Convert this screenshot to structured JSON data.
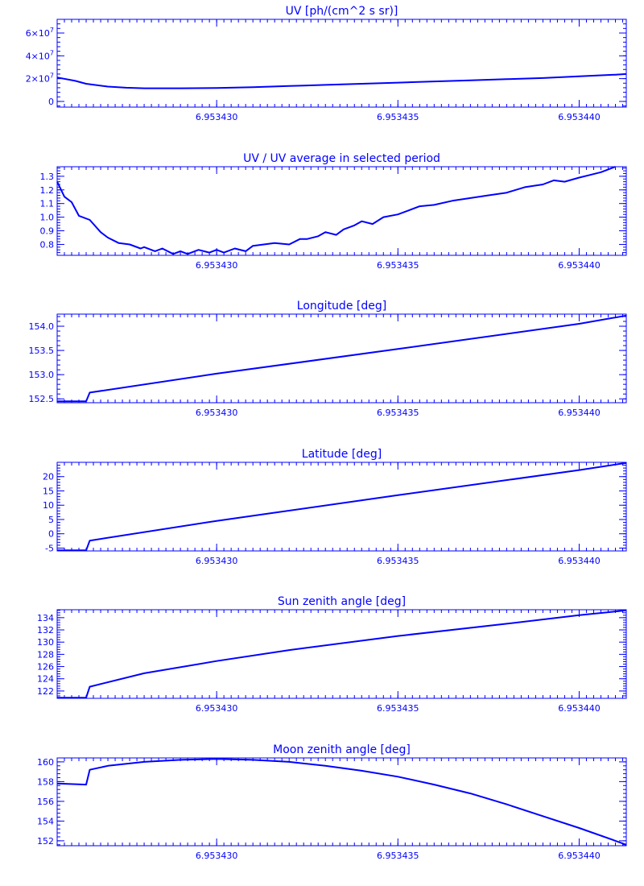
{
  "colors": {
    "ink": "#0000ff",
    "background": "#ffffff"
  },
  "chart_data": [
    {
      "type": "line",
      "title": "UV [ph/(cm^2 s sr)]",
      "xlim": [
        6.9534256,
        6.9534413
      ],
      "ylim": [
        -5000000,
        72000000
      ],
      "x_ticks": [
        6.95343,
        6.953435,
        6.95344
      ],
      "x_tick_labels": [
        "6.953430",
        "6.953435",
        "6.953440"
      ],
      "y_ticks": [
        0,
        20000000,
        40000000,
        60000000
      ],
      "y_tick_labels": [
        {
          "m": "0",
          "e": ""
        },
        {
          "m": "2×10",
          "e": "7"
        },
        {
          "m": "4×10",
          "e": "7"
        },
        {
          "m": "6×10",
          "e": "7"
        }
      ],
      "series": [
        {
          "x": [
            6.9534256,
            6.9534261,
            6.9534264,
            6.953427,
            6.9534275,
            6.953428,
            6.953429,
            6.95343,
            6.953431,
            6.953432,
            6.953433,
            6.953434,
            6.953435,
            6.953436,
            6.953437,
            6.953438,
            6.953439,
            6.95344,
            6.953441,
            6.9534413
          ],
          "y": [
            21000000,
            18000000,
            15500000,
            13000000,
            12000000,
            11500000,
            11500000,
            11800000,
            12500000,
            13500000,
            14500000,
            15500000,
            16500000,
            17500000,
            18500000,
            19500000,
            20500000,
            22000000,
            23500000,
            24000000
          ]
        }
      ]
    },
    {
      "type": "line",
      "title": "UV / UV average in selected period",
      "xlim": [
        6.9534256,
        6.9534413
      ],
      "ylim": [
        0.72,
        1.37
      ],
      "x_ticks": [
        6.95343,
        6.953435,
        6.95344
      ],
      "x_tick_labels": [
        "6.953430",
        "6.953435",
        "6.953440"
      ],
      "y_ticks": [
        0.8,
        0.9,
        1.0,
        1.1,
        1.2,
        1.3
      ],
      "y_tick_labels": [
        {
          "m": "0.8",
          "e": ""
        },
        {
          "m": "0.9",
          "e": ""
        },
        {
          "m": "1.0",
          "e": ""
        },
        {
          "m": "1.1",
          "e": ""
        },
        {
          "m": "1.2",
          "e": ""
        },
        {
          "m": "1.3",
          "e": ""
        }
      ],
      "series": [
        {
          "x": [
            6.9534256,
            6.9534258,
            6.953426,
            6.9534262,
            6.9534265,
            6.9534268,
            6.953427,
            6.9534273,
            6.9534276,
            6.9534279,
            6.953428,
            6.9534283,
            6.9534285,
            6.9534288,
            6.953429,
            6.9534292,
            6.9534295,
            6.9534298,
            6.95343,
            6.9534302,
            6.9534305,
            6.9534308,
            6.953431,
            6.9534313,
            6.9534316,
            6.953432,
            6.9534323,
            6.9534325,
            6.9534328,
            6.953433,
            6.9534333,
            6.9534335,
            6.9534338,
            6.953434,
            6.9534343,
            6.9534346,
            6.953435,
            6.9534353,
            6.9534356,
            6.953436,
            6.9534365,
            6.953437,
            6.9534375,
            6.953438,
            6.9534385,
            6.953439,
            6.9534393,
            6.9534396,
            6.95344,
            6.9534403,
            6.9534406,
            6.953441
          ],
          "y": [
            1.26,
            1.15,
            1.11,
            1.01,
            0.98,
            0.89,
            0.85,
            0.81,
            0.8,
            0.77,
            0.78,
            0.75,
            0.77,
            0.73,
            0.75,
            0.73,
            0.76,
            0.74,
            0.76,
            0.74,
            0.77,
            0.75,
            0.79,
            0.8,
            0.81,
            0.8,
            0.84,
            0.84,
            0.86,
            0.89,
            0.87,
            0.91,
            0.94,
            0.97,
            0.95,
            1.0,
            1.02,
            1.05,
            1.08,
            1.09,
            1.12,
            1.14,
            1.16,
            1.18,
            1.22,
            1.24,
            1.27,
            1.26,
            1.29,
            1.31,
            1.33,
            1.37
          ]
        }
      ]
    },
    {
      "type": "line",
      "title": "Longitude [deg]",
      "xlim": [
        6.9534256,
        6.9534413
      ],
      "ylim": [
        152.42,
        154.25
      ],
      "x_ticks": [
        6.95343,
        6.953435,
        6.95344
      ],
      "x_tick_labels": [
        "6.953430",
        "6.953435",
        "6.953440"
      ],
      "y_ticks": [
        152.5,
        153.0,
        153.5,
        154.0
      ],
      "y_tick_labels": [
        {
          "m": "152.5",
          "e": ""
        },
        {
          "m": "153.0",
          "e": ""
        },
        {
          "m": "153.5",
          "e": ""
        },
        {
          "m": "154.0",
          "e": ""
        }
      ],
      "series": [
        {
          "x": [
            6.9534256,
            6.9534264,
            6.9534265,
            6.95343,
            6.953435,
            6.95344,
            6.9534413
          ],
          "y": [
            152.45,
            152.45,
            152.63,
            153.02,
            153.53,
            154.05,
            154.22
          ]
        }
      ]
    },
    {
      "type": "line",
      "title": "Latitude [deg]",
      "xlim": [
        6.9534256,
        6.9534413
      ],
      "ylim": [
        -6,
        25
      ],
      "x_ticks": [
        6.95343,
        6.953435,
        6.95344
      ],
      "x_tick_labels": [
        "6.953430",
        "6.953435",
        "6.953440"
      ],
      "y_ticks": [
        -5,
        0,
        5,
        10,
        15,
        20
      ],
      "y_tick_labels": [
        {
          "m": "-5",
          "e": ""
        },
        {
          "m": "0",
          "e": ""
        },
        {
          "m": "5",
          "e": ""
        },
        {
          "m": "10",
          "e": ""
        },
        {
          "m": "15",
          "e": ""
        },
        {
          "m": "20",
          "e": ""
        }
      ],
      "series": [
        {
          "x": [
            6.9534256,
            6.9534264,
            6.9534265,
            6.95343,
            6.953435,
            6.95344,
            6.9534413
          ],
          "y": [
            -5.8,
            -5.8,
            -2.4,
            4.5,
            13.5,
            22.3,
            24.8
          ]
        }
      ]
    },
    {
      "type": "line",
      "title": "Sun zenith angle [deg]",
      "xlim": [
        6.9534256,
        6.9534413
      ],
      "ylim": [
        120.8,
        135.3
      ],
      "x_ticks": [
        6.95343,
        6.953435,
        6.95344
      ],
      "x_tick_labels": [
        "6.953430",
        "6.953435",
        "6.953440"
      ],
      "y_ticks": [
        122,
        124,
        126,
        128,
        130,
        132,
        134
      ],
      "y_tick_labels": [
        {
          "m": "122",
          "e": ""
        },
        {
          "m": "124",
          "e": ""
        },
        {
          "m": "126",
          "e": ""
        },
        {
          "m": "128",
          "e": ""
        },
        {
          "m": "130",
          "e": ""
        },
        {
          "m": "132",
          "e": ""
        },
        {
          "m": "134",
          "e": ""
        }
      ],
      "series": [
        {
          "x": [
            6.9534256,
            6.9534264,
            6.9534265,
            6.953428,
            6.95343,
            6.953432,
            6.953435,
            6.953438,
            6.95344,
            6.9534413
          ],
          "y": [
            120.9,
            120.9,
            122.7,
            124.9,
            126.9,
            128.7,
            131.0,
            133.0,
            134.4,
            135.2
          ]
        }
      ]
    },
    {
      "type": "line",
      "title": "Moon zenith angle [deg]",
      "xlim": [
        6.9534256,
        6.9534413
      ],
      "ylim": [
        151.5,
        160.4
      ],
      "x_ticks": [
        6.95343,
        6.953435,
        6.95344
      ],
      "x_tick_labels": [
        "6.953430",
        "6.953435",
        "6.953440"
      ],
      "y_ticks": [
        152,
        154,
        156,
        158,
        160
      ],
      "y_tick_labels": [
        {
          "m": "152",
          "e": ""
        },
        {
          "m": "154",
          "e": ""
        },
        {
          "m": "156",
          "e": ""
        },
        {
          "m": "158",
          "e": ""
        },
        {
          "m": "160",
          "e": ""
        }
      ],
      "series": [
        {
          "x": [
            6.9534256,
            6.9534264,
            6.9534265,
            6.953427,
            6.953428,
            6.953429,
            6.95343,
            6.953431,
            6.953432,
            6.953433,
            6.953434,
            6.953435,
            6.953436,
            6.953437,
            6.953438,
            6.953439,
            6.95344,
            6.953441,
            6.9534413
          ],
          "y": [
            157.8,
            157.7,
            159.2,
            159.6,
            160.0,
            160.2,
            160.3,
            160.2,
            160.0,
            159.6,
            159.1,
            158.5,
            157.7,
            156.8,
            155.7,
            154.5,
            153.3,
            152.0,
            151.6
          ]
        }
      ]
    }
  ]
}
